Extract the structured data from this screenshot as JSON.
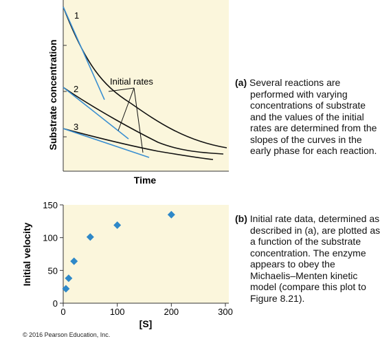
{
  "colors": {
    "panel": "#fbf6dc",
    "marker": "#2e88c8",
    "tangent": "#3a8fd1",
    "curve": "#111111"
  },
  "panel_a": {
    "ylabel": "Substrate concentration",
    "xlabel": "Time",
    "annotation": "Initial rates",
    "curve_labels": [
      "1",
      "2",
      "3"
    ],
    "caption_tag": "(a)",
    "caption": "Several reactions are performed with varying concentrations of substrate and the values of the initial rates are determined from the slopes of the curves in the early phase for each reaction."
  },
  "panel_b": {
    "caption_tag": "(b)",
    "caption": "Initial rate data, determined as described in (a), are plotted as a function of the substrate concentration. The enzyme appears to obey the Michaelis–Menten kinetic model (compare this plot to Figure 8.21)."
  },
  "copyright": "© 2016 Pearson Education, Inc.",
  "chart_data": [
    {
      "type": "line",
      "title": "",
      "xlabel": "Time",
      "ylabel": "Substrate concentration",
      "series": [
        {
          "name": "1"
        },
        {
          "name": "2"
        },
        {
          "name": "3"
        }
      ],
      "annotations": [
        "Initial rates"
      ]
    },
    {
      "type": "scatter",
      "xlabel": "[S]",
      "ylabel": "Initial velocity",
      "xlim": [
        0,
        300
      ],
      "ylim": [
        0,
        150
      ],
      "xticks": [
        0,
        100,
        200,
        300
      ],
      "yticks": [
        0,
        50,
        100,
        150
      ],
      "x": [
        5,
        10,
        20,
        50,
        100,
        200
      ],
      "y": [
        22,
        38,
        64,
        101,
        119,
        135
      ]
    }
  ]
}
